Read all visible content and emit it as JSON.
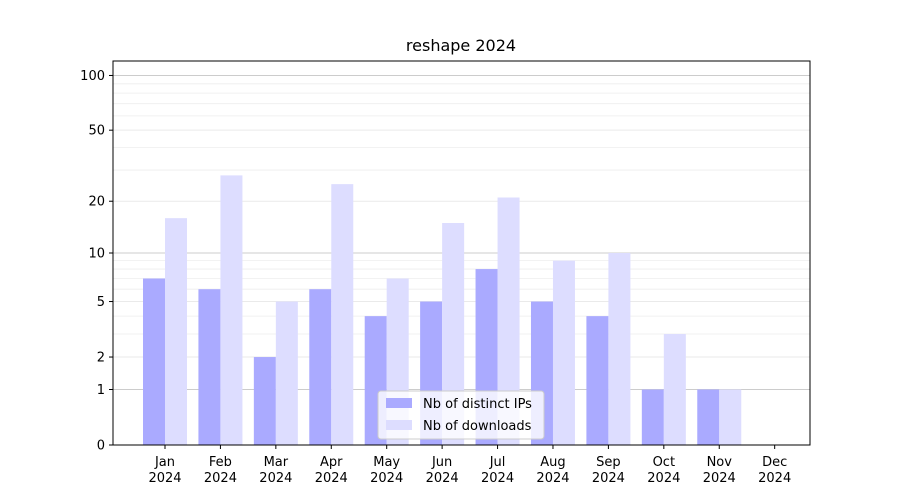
{
  "chart_data": {
    "type": "bar",
    "title": "reshape 2024",
    "xlabel": "",
    "ylabel": "",
    "categories": [
      "Jan\n2024",
      "Feb\n2024",
      "Mar\n2024",
      "Apr\n2024",
      "May\n2024",
      "Jun\n2024",
      "Jul\n2024",
      "Aug\n2024",
      "Sep\n2024",
      "Oct\n2024",
      "Nov\n2024",
      "Dec\n2024"
    ],
    "y_scale": "log1p",
    "ylim": [
      0,
      120
    ],
    "yticks": [
      0,
      1,
      2,
      5,
      10,
      20,
      50,
      100
    ],
    "grid": true,
    "legend_position": "bottom-center",
    "series": [
      {
        "name": "Nb of distinct IPs",
        "color": "#aaaaff",
        "values": [
          7,
          6,
          2,
          6,
          4,
          5,
          8,
          5,
          4,
          1,
          1,
          0
        ]
      },
      {
        "name": "Nb of downloads",
        "color": "#ddddff",
        "values": [
          16,
          28,
          5,
          25,
          7,
          15,
          21,
          9,
          10,
          3,
          1,
          0
        ]
      }
    ]
  }
}
